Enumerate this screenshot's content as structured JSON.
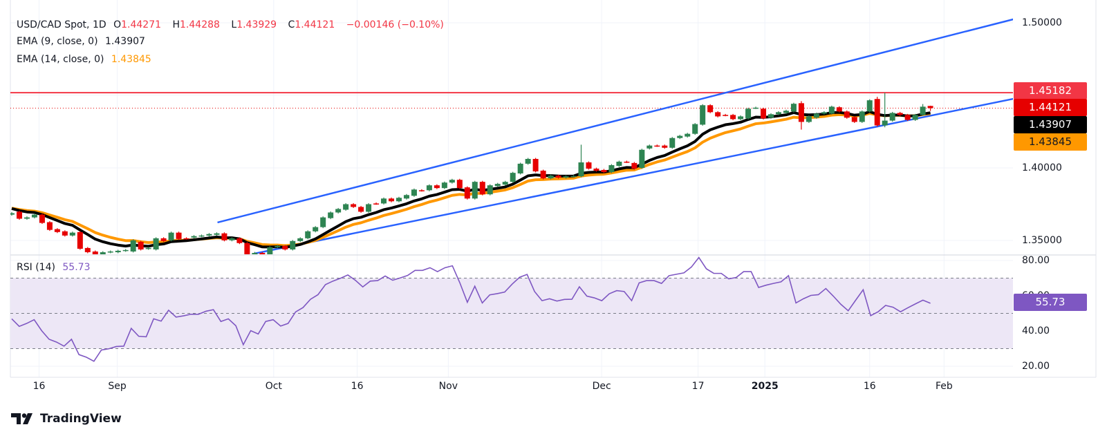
{
  "header": {
    "symbol": "USD/CAD Spot, 1D",
    "o_label": "O",
    "o": "1.44271",
    "h_label": "H",
    "h": "1.44288",
    "l_label": "L",
    "l": "1.43929",
    "c_label": "C",
    "c": "1.44121",
    "change": "−0.00146 (−0.10%)",
    "ema9_label": "EMA (9, close, 0)",
    "ema9_value": "1.43907",
    "ema14_label": "EMA (14, close, 0)",
    "ema14_value": "1.43845"
  },
  "rsi_legend": {
    "label": "RSI (14)",
    "value": "55.73"
  },
  "badges": {
    "resistance": "1.45182",
    "last_price": "1.44121",
    "ema9": "1.43907",
    "ema14": "1.43845",
    "rsi": "55.73"
  },
  "logo": {
    "text": "TradingView"
  },
  "colors": {
    "up": "#2e8452",
    "down": "#e60000",
    "ema9": "#000000",
    "ema14": "#ff9800",
    "channel": "#2962ff",
    "resistance": "#f23645",
    "rsi": "#7e57c2",
    "rsi_band": "#ede7f6"
  },
  "chart_data": {
    "type": "candlestick",
    "price_axis": {
      "ticks": [
        "1.50000",
        "1.40000",
        "1.35000"
      ],
      "tick_values": [
        1.5,
        1.4,
        1.35
      ]
    },
    "x_ticks": [
      {
        "label": "16",
        "index": 3.6
      },
      {
        "label": "Sep",
        "index": 13.9
      },
      {
        "label": "Oct",
        "index": 34.5
      },
      {
        "label": "16",
        "index": 45.5
      },
      {
        "label": "Nov",
        "index": 57.5
      },
      {
        "label": "Dec",
        "index": 77.7
      },
      {
        "label": "17",
        "index": 90.4
      },
      {
        "label": "2025",
        "index": 99.2,
        "bold": true
      },
      {
        "label": "16",
        "index": 113
      },
      {
        "label": "Feb",
        "index": 122.8
      }
    ],
    "candles_oc": [
      [
        1.3678,
        1.3688
      ],
      [
        1.3698,
        1.365
      ],
      [
        1.365,
        1.3659
      ],
      [
        1.3659,
        1.3678
      ],
      [
        1.3678,
        1.3621
      ],
      [
        1.3626,
        1.3573
      ],
      [
        1.3578,
        1.3558
      ],
      [
        1.3563,
        1.3534
      ],
      [
        1.3534,
        1.3554
      ],
      [
        1.3558,
        1.3443
      ],
      [
        1.3448,
        1.3419
      ],
      [
        1.3424,
        1.3381
      ],
      [
        1.3381,
        1.3419
      ],
      [
        1.3419,
        1.3424
      ],
      [
        1.3419,
        1.3429
      ],
      [
        1.3429,
        1.3434
      ],
      [
        1.3424,
        1.3501
      ],
      [
        1.3491,
        1.3438
      ],
      [
        1.3443,
        1.3448
      ],
      [
        1.3438,
        1.3515
      ],
      [
        1.3515,
        1.3496
      ],
      [
        1.3501,
        1.3554
      ],
      [
        1.3554,
        1.351
      ],
      [
        1.3515,
        1.3512
      ],
      [
        1.352,
        1.353
      ],
      [
        1.353,
        1.3534
      ],
      [
        1.3534,
        1.3544
      ],
      [
        1.3539,
        1.3549
      ],
      [
        1.3549,
        1.3501
      ],
      [
        1.3501,
        1.3515
      ],
      [
        1.3515,
        1.3482
      ],
      [
        1.3482,
        1.3381
      ],
      [
        1.339,
        1.3414
      ],
      [
        1.3414,
        1.3395
      ],
      [
        1.3395,
        1.3453
      ],
      [
        1.3453,
        1.3462
      ],
      [
        1.3462,
        1.3438
      ],
      [
        1.3438,
        1.3496
      ],
      [
        1.3496,
        1.3515
      ],
      [
        1.3515,
        1.3563
      ],
      [
        1.3563,
        1.3592
      ],
      [
        1.3592,
        1.3659
      ],
      [
        1.3654,
        1.3693
      ],
      [
        1.3693,
        1.3717
      ],
      [
        1.3712,
        1.375
      ],
      [
        1.375,
        1.3731
      ],
      [
        1.3731,
        1.3698
      ],
      [
        1.3698,
        1.375
      ],
      [
        1.3755,
        1.3753
      ],
      [
        1.3755,
        1.3789
      ],
      [
        1.3789,
        1.377
      ],
      [
        1.377,
        1.3794
      ],
      [
        1.3789,
        1.3813
      ],
      [
        1.3808,
        1.3851
      ],
      [
        1.3846,
        1.3844
      ],
      [
        1.3846,
        1.388
      ],
      [
        1.388,
        1.3861
      ],
      [
        1.3861,
        1.3899
      ],
      [
        1.3899,
        1.3918
      ],
      [
        1.3918,
        1.3861
      ],
      [
        1.3866,
        1.3789
      ],
      [
        1.3789,
        1.3904
      ],
      [
        1.3904,
        1.3818
      ],
      [
        1.3818,
        1.388
      ],
      [
        1.3875,
        1.389
      ],
      [
        1.3885,
        1.3904
      ],
      [
        1.3904,
        1.3966
      ],
      [
        1.3962,
        1.4029
      ],
      [
        1.4029,
        1.4062
      ],
      [
        1.4062,
        1.3976
      ],
      [
        1.3981,
        1.3928
      ],
      [
        1.3928,
        1.3947
      ],
      [
        1.3947,
        1.3933
      ],
      [
        1.3933,
        1.3942
      ],
      [
        1.3942,
        1.3944
      ],
      [
        1.3942,
        1.416,
        1.3935,
        1.4038
      ],
      [
        1.4038,
        1.3995
      ],
      [
        1.3995,
        1.3981
      ],
      [
        1.3986,
        1.3971
      ],
      [
        1.3971,
        1.4019
      ],
      [
        1.4014,
        1.4043
      ],
      [
        1.4043,
        1.4041
      ],
      [
        1.4034,
        1.3995
      ],
      [
        1.4,
        1.4125
      ],
      [
        1.4134,
        1.4154
      ],
      [
        1.4154,
        1.4152
      ],
      [
        1.4154,
        1.4139
      ],
      [
        1.4139,
        1.4206
      ],
      [
        1.4206,
        1.4221
      ],
      [
        1.4216,
        1.4235
      ],
      [
        1.4235,
        1.4302
      ],
      [
        1.4298,
        1.4432
      ],
      [
        1.4432,
        1.4384
      ],
      [
        1.4384,
        1.4355
      ],
      [
        1.4365,
        1.4363
      ],
      [
        1.4365,
        1.4336
      ],
      [
        1.4336,
        1.4355
      ],
      [
        1.4341,
        1.4408
      ],
      [
        1.4413,
        1.4415
      ],
      [
        1.4408,
        1.4341
      ],
      [
        1.4346,
        1.437
      ],
      [
        1.437,
        1.4384
      ],
      [
        1.4379,
        1.4394
      ],
      [
        1.4389,
        1.4442
      ],
      [
        1.4446,
        1.446,
        1.4264,
        1.4317
      ],
      [
        1.4317,
        1.4355
      ],
      [
        1.4346,
        1.4374
      ],
      [
        1.4374,
        1.4384
      ],
      [
        1.4374,
        1.4422
      ],
      [
        1.4418,
        1.4389
      ],
      [
        1.4389,
        1.4346
      ],
      [
        1.435,
        1.4317
      ],
      [
        1.4317,
        1.4389
      ],
      [
        1.4389,
        1.4466
      ],
      [
        1.4475,
        1.449,
        1.4285,
        1.4293
      ],
      [
        1.4293,
        1.4518,
        1.428,
        1.4326
      ],
      [
        1.4326,
        1.4379
      ],
      [
        1.4379,
        1.4365
      ],
      [
        1.4365,
        1.4331
      ],
      [
        1.4331,
        1.4365
      ],
      [
        1.4365,
        1.444,
        1.436,
        1.4422
      ],
      [
        1.44271,
        1.44288,
        1.43929,
        1.44121
      ]
    ],
    "ema_periods": [
      9,
      14
    ],
    "resistance_level": 1.45182,
    "last_price": 1.44121,
    "channel": {
      "upper": [
        {
          "index": 27.1,
          "price": 1.3624
        },
        {
          "index": 131.9,
          "price": 1.5024
        }
      ],
      "lower": [
        {
          "index": 32.0,
          "price": 1.341
        },
        {
          "index": 131.9,
          "price": 1.4476
        }
      ]
    },
    "rsi": {
      "period": 14,
      "ticks": [
        "80.00",
        "60.00",
        "40.00",
        "20.00"
      ],
      "tick_values": [
        80,
        60,
        40,
        20
      ],
      "levels": [
        70,
        50,
        30
      ],
      "values": [
        46.9,
        42.6,
        44.3,
        46.4,
        40.2,
        35.3,
        33.7,
        31.4,
        35.3,
        26.6,
        25.1,
        22.8,
        29.2,
        29.9,
        31.2,
        31.4,
        41.5,
        37.0,
        36.7,
        46.9,
        45.6,
        51.8,
        47.9,
        48.6,
        49.5,
        49.5,
        51.2,
        52.1,
        45.4,
        46.9,
        43.0,
        32.2,
        40.2,
        38.3,
        45.4,
        46.4,
        42.8,
        44.3,
        50.8,
        53.3,
        58.0,
        60.6,
        66.3,
        68.3,
        69.9,
        71.8,
        68.8,
        65.0,
        68.3,
        68.6,
        71.2,
        68.8,
        70.1,
        71.5,
        74.4,
        74.4,
        75.9,
        73.7,
        75.9,
        77.0,
        67.3,
        56.3,
        65.4,
        55.9,
        60.5,
        61.2,
        62.1,
        66.6,
        70.5,
        72.1,
        62.4,
        57.2,
        58.3,
        57.0,
        57.9,
        58.0,
        65.1,
        59.8,
        58.8,
        57.2,
        61.1,
        62.9,
        62.4,
        57.2,
        67.3,
        68.6,
        68.6,
        67.0,
        71.4,
        72.2,
        73.0,
        76.3,
        81.7,
        75.3,
        72.7,
        72.7,
        69.6,
        70.4,
        73.7,
        73.7,
        64.7,
        66.0,
        67.0,
        67.9,
        71.4,
        55.9,
        58.3,
        60.2,
        60.6,
        64.1,
        59.8,
        55.2,
        51.5,
        57.5,
        63.4,
        48.7,
        50.9,
        54.5,
        53.5,
        50.9,
        53.2,
        55.4,
        57.5,
        55.73
      ]
    }
  }
}
